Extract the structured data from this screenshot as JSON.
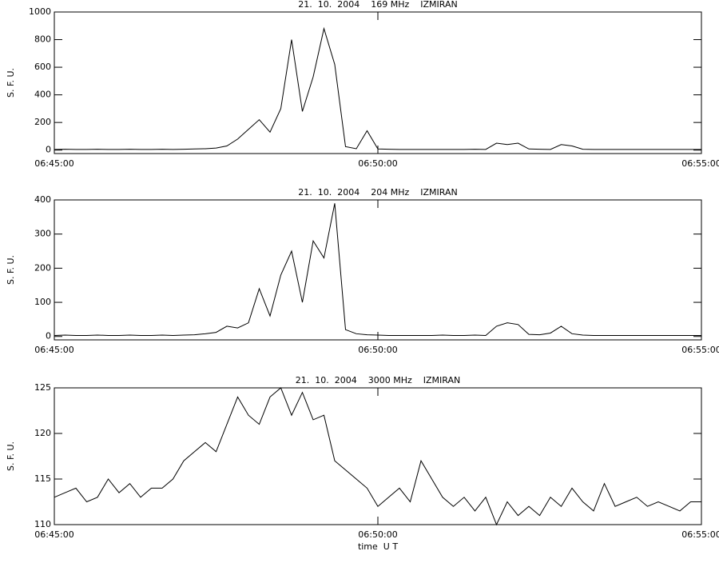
{
  "chart_data": [
    {
      "type": "line",
      "title": "21.  10.  2004    169 MHz    IZMIRAN",
      "y_label": "S. F. U.",
      "x": [
        "06:45:00",
        "06:45:10",
        "06:45:20",
        "06:45:30",
        "06:45:40",
        "06:45:50",
        "06:46:00",
        "06:46:10",
        "06:46:20",
        "06:46:30",
        "06:46:40",
        "06:46:50",
        "06:47:00",
        "06:47:10",
        "06:47:20",
        "06:47:30",
        "06:47:40",
        "06:47:50",
        "06:48:00",
        "06:48:10",
        "06:48:20",
        "06:48:30",
        "06:48:40",
        "06:48:50",
        "06:49:00",
        "06:49:10",
        "06:49:20",
        "06:49:30",
        "06:49:40",
        "06:49:50",
        "06:50:00",
        "06:50:10",
        "06:50:20",
        "06:50:30",
        "06:50:40",
        "06:50:50",
        "06:51:00",
        "06:51:10",
        "06:51:20",
        "06:51:30",
        "06:51:40",
        "06:51:50",
        "06:52:00",
        "06:52:10",
        "06:52:20",
        "06:52:30",
        "06:52:40",
        "06:52:50",
        "06:53:00",
        "06:53:10",
        "06:53:20",
        "06:53:30",
        "06:53:40",
        "06:53:50",
        "06:54:00",
        "06:54:10",
        "06:54:20",
        "06:54:30",
        "06:54:40",
        "06:54:50",
        "06:55:00"
      ],
      "series": [
        {
          "color": "#000000",
          "values": [
            5,
            6,
            5,
            5,
            6,
            5,
            5,
            6,
            5,
            5,
            6,
            5,
            6,
            8,
            10,
            15,
            30,
            80,
            150,
            220,
            130,
            300,
            800,
            280,
            530,
            880,
            620,
            25,
            10,
            140,
            8,
            6,
            5,
            5,
            5,
            5,
            5,
            5,
            5,
            6,
            5,
            50,
            40,
            50,
            8,
            6,
            5,
            40,
            30,
            6,
            5,
            5,
            5,
            5,
            5,
            5,
            5,
            5,
            5,
            5,
            5
          ]
        }
      ],
      "xlim": [
        "06:45:00",
        "06:55:00"
      ],
      "xticks": [
        "06:45:00",
        "06:50:00",
        "06:55:00"
      ],
      "ylim": [
        -25,
        1000
      ],
      "yticks": [
        0,
        200,
        400,
        600,
        800,
        1000
      ]
    },
    {
      "type": "line",
      "title": "21.  10.  2004    204 MHz    IZMIRAN",
      "y_label": "S. F. U.",
      "x": [
        "06:45:00",
        "06:45:10",
        "06:45:20",
        "06:45:30",
        "06:45:40",
        "06:45:50",
        "06:46:00",
        "06:46:10",
        "06:46:20",
        "06:46:30",
        "06:46:40",
        "06:46:50",
        "06:47:00",
        "06:47:10",
        "06:47:20",
        "06:47:30",
        "06:47:40",
        "06:47:50",
        "06:48:00",
        "06:48:10",
        "06:48:20",
        "06:48:30",
        "06:48:40",
        "06:48:50",
        "06:49:00",
        "06:49:10",
        "06:49:20",
        "06:49:30",
        "06:49:40",
        "06:49:50",
        "06:50:00",
        "06:50:10",
        "06:50:20",
        "06:50:30",
        "06:50:40",
        "06:50:50",
        "06:51:00",
        "06:51:10",
        "06:51:20",
        "06:51:30",
        "06:51:40",
        "06:51:50",
        "06:52:00",
        "06:52:10",
        "06:52:20",
        "06:52:30",
        "06:52:40",
        "06:52:50",
        "06:53:00",
        "06:53:10",
        "06:53:20",
        "06:53:30",
        "06:53:40",
        "06:53:50",
        "06:54:00",
        "06:54:10",
        "06:54:20",
        "06:54:30",
        "06:54:40",
        "06:54:50",
        "06:55:00"
      ],
      "series": [
        {
          "color": "#000000",
          "values": [
            3,
            4,
            3,
            3,
            4,
            3,
            3,
            4,
            3,
            3,
            4,
            3,
            4,
            5,
            8,
            12,
            30,
            25,
            40,
            140,
            60,
            180,
            250,
            100,
            280,
            230,
            390,
            20,
            8,
            5,
            4,
            3,
            3,
            3,
            3,
            3,
            4,
            3,
            3,
            4,
            3,
            30,
            40,
            35,
            6,
            5,
            10,
            30,
            8,
            4,
            3,
            3,
            3,
            3,
            3,
            3,
            3,
            3,
            3,
            3,
            3
          ]
        }
      ],
      "xlim": [
        "06:45:00",
        "06:55:00"
      ],
      "xticks": [
        "06:45:00",
        "06:50:00",
        "06:55:00"
      ],
      "ylim": [
        -10,
        400
      ],
      "yticks": [
        0,
        100,
        200,
        300,
        400
      ]
    },
    {
      "type": "line",
      "title": "21.  10.  2004    3000 MHz    IZMIRAN",
      "y_label": "S. F. U.",
      "x_label": "time  U T",
      "x": [
        "06:45:00",
        "06:45:10",
        "06:45:20",
        "06:45:30",
        "06:45:40",
        "06:45:50",
        "06:46:00",
        "06:46:10",
        "06:46:20",
        "06:46:30",
        "06:46:40",
        "06:46:50",
        "06:47:00",
        "06:47:10",
        "06:47:20",
        "06:47:30",
        "06:47:40",
        "06:47:50",
        "06:48:00",
        "06:48:10",
        "06:48:20",
        "06:48:30",
        "06:48:40",
        "06:48:50",
        "06:49:00",
        "06:49:10",
        "06:49:20",
        "06:49:30",
        "06:49:40",
        "06:49:50",
        "06:50:00",
        "06:50:10",
        "06:50:20",
        "06:50:30",
        "06:50:40",
        "06:50:50",
        "06:51:00",
        "06:51:10",
        "06:51:20",
        "06:51:30",
        "06:51:40",
        "06:51:50",
        "06:52:00",
        "06:52:10",
        "06:52:20",
        "06:52:30",
        "06:52:40",
        "06:52:50",
        "06:53:00",
        "06:53:10",
        "06:53:20",
        "06:53:30",
        "06:53:40",
        "06:53:50",
        "06:54:00",
        "06:54:10",
        "06:54:20",
        "06:54:30",
        "06:54:40",
        "06:54:50",
        "06:55:00"
      ],
      "series": [
        {
          "color": "#000000",
          "values": [
            113,
            113.5,
            114,
            112.5,
            113,
            115,
            113.5,
            114.5,
            113,
            114,
            114,
            115,
            117,
            118,
            119,
            118,
            121,
            124,
            122,
            121,
            124,
            125,
            122,
            124.5,
            121.5,
            122,
            117,
            116,
            115,
            114,
            112,
            113,
            114,
            112.5,
            117,
            115,
            113,
            112,
            113,
            111.5,
            113,
            110,
            112.5,
            111,
            112,
            111,
            113,
            112,
            114,
            112.5,
            111.5,
            114.5,
            112,
            112.5,
            113,
            112,
            112.5,
            112,
            111.5,
            112.5,
            112.5
          ]
        }
      ],
      "xlim": [
        "06:45:00",
        "06:55:00"
      ],
      "xticks": [
        "06:45:00",
        "06:50:00",
        "06:55:00"
      ],
      "ylim": [
        110,
        125
      ],
      "yticks": [
        110,
        115,
        120,
        125
      ]
    }
  ]
}
